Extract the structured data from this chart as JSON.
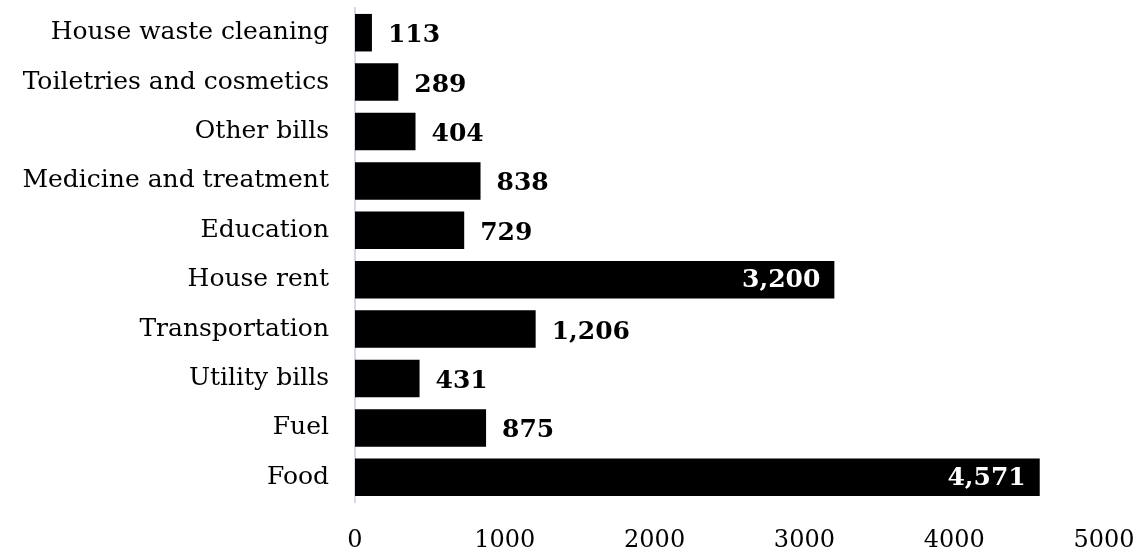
{
  "chart_data": {
    "type": "bar",
    "orientation": "horizontal",
    "categories": [
      "House waste cleaning",
      "Toiletries and cosmetics",
      "Other bills",
      "Medicine and treatment",
      "Education",
      "House rent",
      "Transportation",
      "Utility bills",
      "Fuel",
      "Food"
    ],
    "values": [
      113,
      289,
      404,
      838,
      729,
      3200,
      1206,
      431,
      875,
      4571
    ],
    "color": "#000000",
    "value_labels": [
      "113",
      "289",
      "404",
      "838",
      "729",
      "3,200",
      "1,206",
      "431",
      "875",
      "4,571"
    ],
    "xlim": [
      0,
      5000
    ],
    "xticks": [
      0,
      1000,
      2000,
      3000,
      4000,
      5000
    ],
    "grid": false,
    "legend": false
  }
}
